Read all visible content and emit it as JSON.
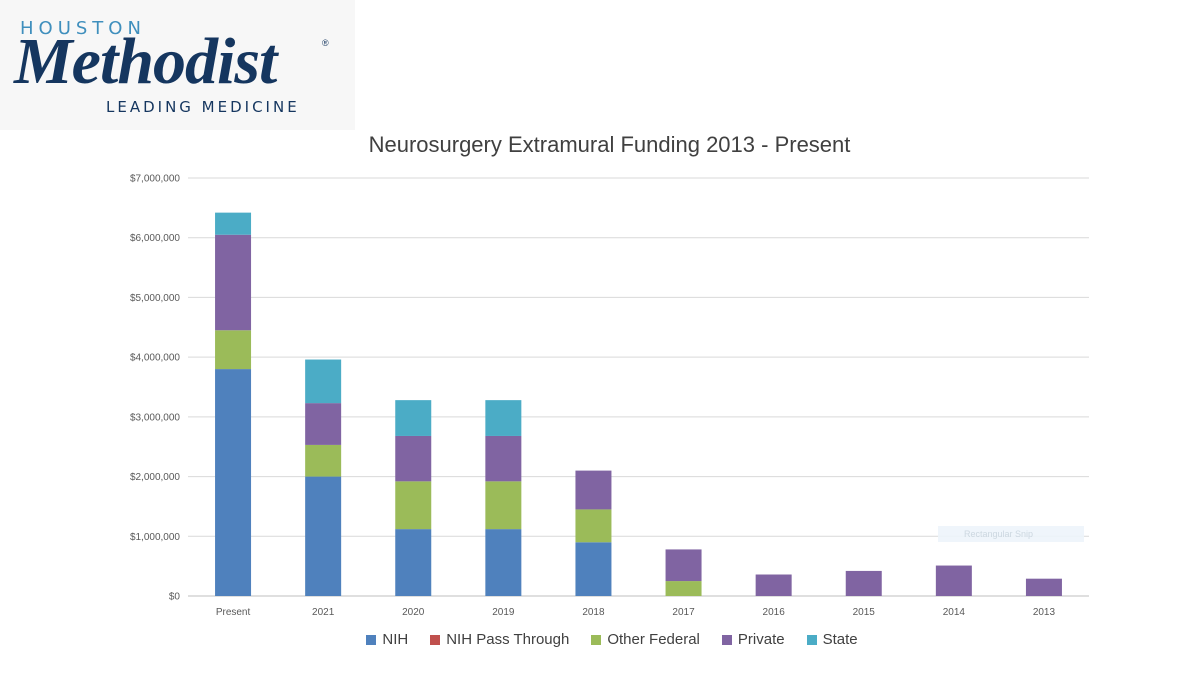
{
  "logo": {
    "top": "HOUSTON",
    "main": "Methodist",
    "reg": "®",
    "bottom": "LEADING MEDICINE"
  },
  "tooltip_ghost": "Rectangular Snip",
  "chart_data": {
    "type": "bar",
    "stacked": true,
    "title": "Neurosurgery Extramural Funding 2013 - Present",
    "xlabel": "",
    "ylabel": "",
    "ylim": [
      0,
      7000000
    ],
    "ytick_step": 1000000,
    "ytick_labels": [
      "$0",
      "$1,000,000",
      "$2,000,000",
      "$3,000,000",
      "$4,000,000",
      "$5,000,000",
      "$6,000,000",
      "$7,000,000"
    ],
    "grid": true,
    "legend_position": "bottom",
    "categories": [
      "Present",
      "2021",
      "2020",
      "2019",
      "2018",
      "2017",
      "2016",
      "2015",
      "2014",
      "2013"
    ],
    "series": [
      {
        "name": "NIH",
        "color": "#4f81bd",
        "values": [
          3800000,
          2000000,
          1120000,
          1120000,
          900000,
          0,
          0,
          0,
          0,
          0
        ]
      },
      {
        "name": "NIH Pass Through",
        "color": "#c0504d",
        "values": [
          0,
          0,
          0,
          0,
          0,
          0,
          0,
          0,
          0,
          0
        ]
      },
      {
        "name": "Other Federal",
        "color": "#9bbb59",
        "values": [
          650000,
          530000,
          800000,
          800000,
          550000,
          250000,
          0,
          0,
          0,
          0
        ]
      },
      {
        "name": "Private",
        "color": "#8064a2",
        "values": [
          1600000,
          700000,
          760000,
          760000,
          650000,
          530000,
          360000,
          420000,
          510000,
          290000
        ]
      },
      {
        "name": "State",
        "color": "#4bacc6",
        "values": [
          370000,
          730000,
          600000,
          600000,
          0,
          0,
          0,
          0,
          0,
          0
        ]
      }
    ]
  }
}
